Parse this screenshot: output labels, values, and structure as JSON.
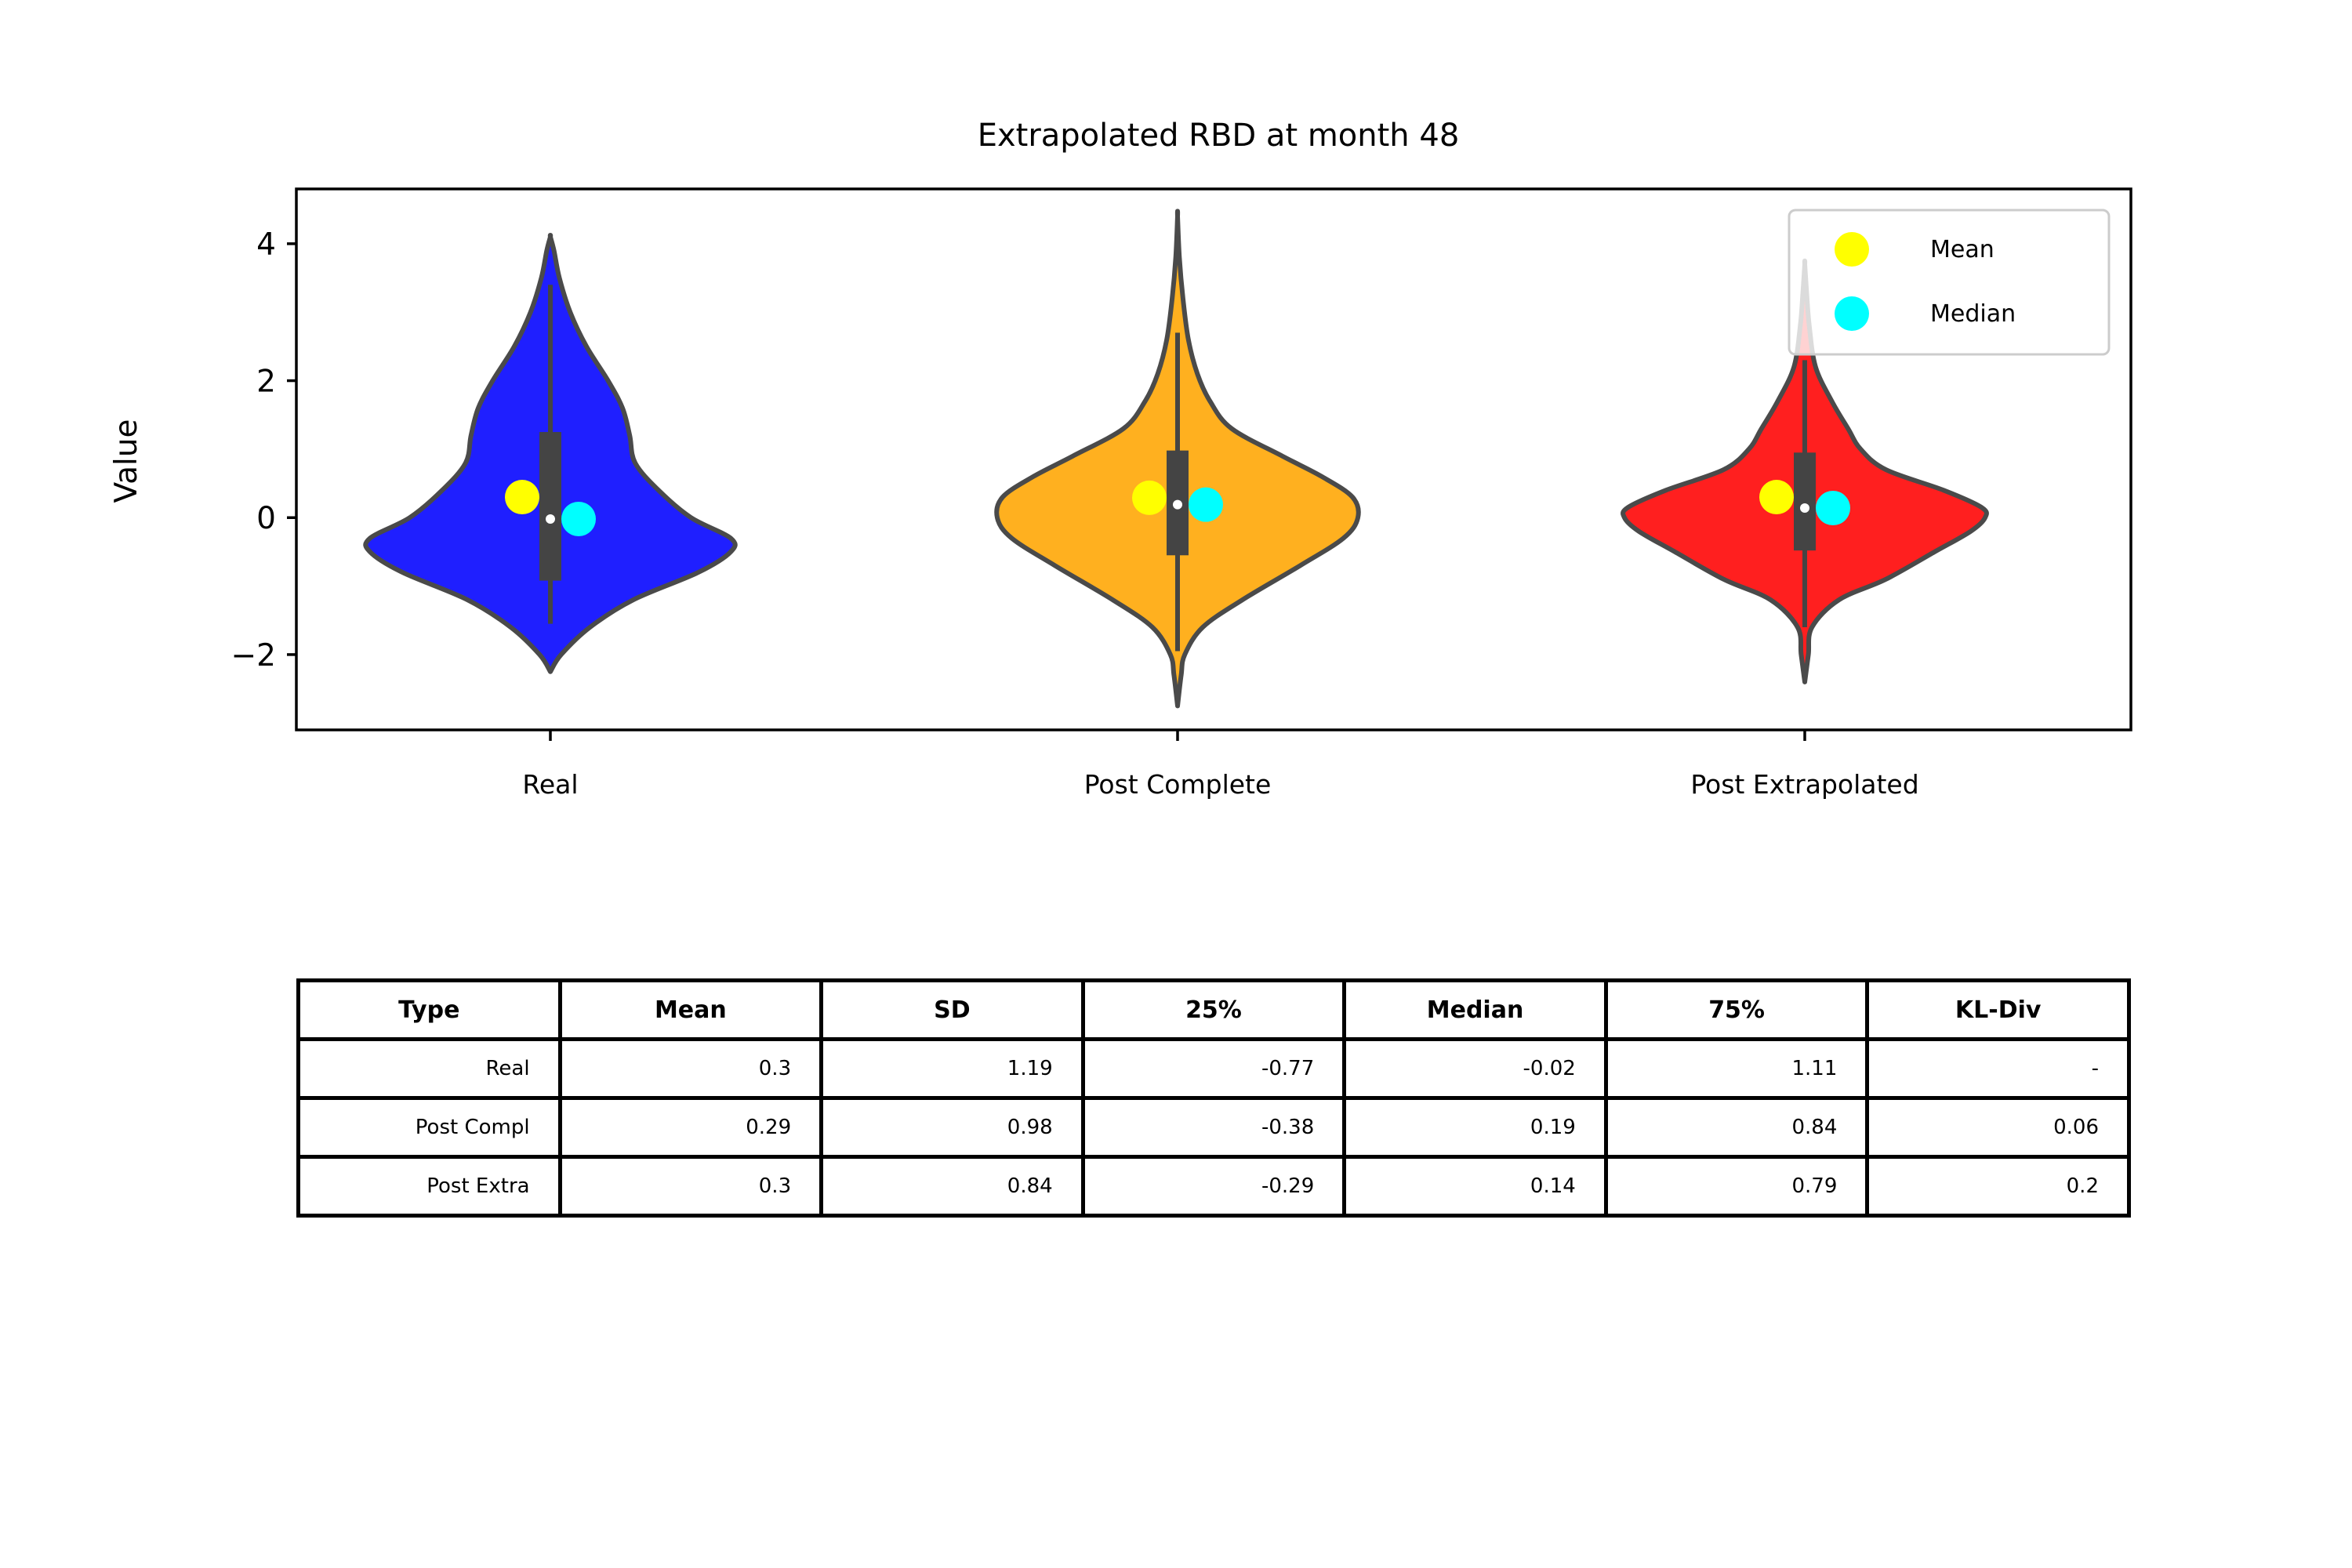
{
  "chart_data": {
    "type": "violin",
    "title": "Extrapolated RBD at month 48",
    "xlabel": "",
    "ylabel": "Value",
    "ylim": [
      -3.1,
      4.8
    ],
    "yticks": [
      -2,
      0,
      2,
      4
    ],
    "ytick_labels": [
      "−2",
      "0",
      "2",
      "4"
    ],
    "categories": [
      "Real",
      "Post Complete",
      "Post Extrapolated"
    ],
    "colors": [
      "#0000ff",
      "#ffa500",
      "#ff0000"
    ],
    "grid": false,
    "legend": {
      "position": "top-right",
      "entries": [
        {
          "label": "Mean",
          "color": "#ffff00"
        },
        {
          "label": "Median",
          "color": "#00ffff"
        }
      ]
    },
    "violins": [
      {
        "name": "Real",
        "y_range": [
          -2.25,
          4.1
        ],
        "whisker": [
          -1.55,
          3.4
        ],
        "box": [
          -0.92,
          1.25
        ],
        "inner_median": -0.02,
        "mean": 0.3,
        "median": -0.02,
        "profile": [
          [
            -2.25,
            0.0
          ],
          [
            -2.0,
            0.06
          ],
          [
            -1.6,
            0.22
          ],
          [
            -1.2,
            0.46
          ],
          [
            -0.8,
            0.82
          ],
          [
            -0.5,
            1.0
          ],
          [
            -0.3,
            1.0
          ],
          [
            0.0,
            0.78
          ],
          [
            0.4,
            0.6
          ],
          [
            0.8,
            0.47
          ],
          [
            1.2,
            0.44
          ],
          [
            1.6,
            0.4
          ],
          [
            2.0,
            0.32
          ],
          [
            2.5,
            0.2
          ],
          [
            3.0,
            0.11
          ],
          [
            3.5,
            0.05
          ],
          [
            3.9,
            0.02
          ],
          [
            4.1,
            0.0
          ]
        ]
      },
      {
        "name": "Post Complete",
        "y_range": [
          -2.75,
          4.4
        ],
        "whisker": [
          -1.95,
          2.7
        ],
        "box": [
          -0.55,
          0.98
        ],
        "inner_median": 0.19,
        "mean": 0.29,
        "median": 0.19,
        "profile": [
          [
            -2.75,
            0.0
          ],
          [
            -2.3,
            0.02
          ],
          [
            -2.0,
            0.04
          ],
          [
            -1.6,
            0.14
          ],
          [
            -1.2,
            0.36
          ],
          [
            -0.7,
            0.68
          ],
          [
            -0.3,
            0.92
          ],
          [
            0.0,
            1.0
          ],
          [
            0.3,
            0.97
          ],
          [
            0.6,
            0.8
          ],
          [
            0.9,
            0.58
          ],
          [
            1.3,
            0.3
          ],
          [
            1.7,
            0.18
          ],
          [
            2.1,
            0.11
          ],
          [
            2.6,
            0.06
          ],
          [
            3.2,
            0.03
          ],
          [
            3.8,
            0.01
          ],
          [
            4.4,
            0.0
          ]
        ]
      },
      {
        "name": "Post Extrapolated",
        "y_range": [
          -2.4,
          3.7
        ],
        "whisker": [
          -1.6,
          2.3
        ],
        "box": [
          -0.48,
          0.95
        ],
        "inner_median": 0.14,
        "mean": 0.3,
        "median": 0.14,
        "profile": [
          [
            -2.4,
            0.0
          ],
          [
            -2.0,
            0.02
          ],
          [
            -1.6,
            0.04
          ],
          [
            -1.2,
            0.19
          ],
          [
            -0.9,
            0.45
          ],
          [
            -0.5,
            0.72
          ],
          [
            -0.2,
            0.92
          ],
          [
            0.0,
            1.0
          ],
          [
            0.15,
            0.98
          ],
          [
            0.4,
            0.77
          ],
          [
            0.7,
            0.45
          ],
          [
            1.0,
            0.31
          ],
          [
            1.3,
            0.24
          ],
          [
            1.7,
            0.15
          ],
          [
            2.2,
            0.06
          ],
          [
            2.8,
            0.025
          ],
          [
            3.3,
            0.01
          ],
          [
            3.7,
            0.0
          ]
        ]
      }
    ]
  },
  "table": {
    "headers": [
      "Type",
      "Mean",
      "SD",
      "25%",
      "Median",
      "75%",
      "KL-Div"
    ],
    "rows": [
      [
        "Real",
        "0.3",
        "1.19",
        "-0.77",
        "-0.02",
        "1.11",
        "-"
      ],
      [
        "Post Compl",
        "0.29",
        "0.98",
        "-0.38",
        "0.19",
        "0.84",
        "0.06"
      ],
      [
        "Post Extra",
        "0.3",
        "0.84",
        "-0.29",
        "0.14",
        "0.79",
        "0.2"
      ]
    ]
  }
}
